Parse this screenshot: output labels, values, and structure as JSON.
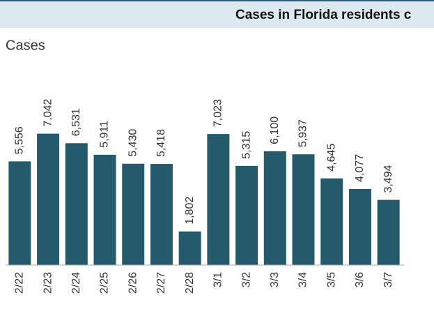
{
  "chart_data": {
    "type": "bar",
    "title": "Cases in Florida residents c",
    "y_label": "Cases",
    "categories": [
      "2/22",
      "2/23",
      "2/24",
      "2/25",
      "2/26",
      "2/27",
      "2/28",
      "3/1",
      "3/2",
      "3/3",
      "3/4",
      "3/5",
      "3/6",
      "3/7"
    ],
    "values": [
      5556,
      7042,
      6531,
      5911,
      5430,
      5418,
      1802,
      7023,
      5315,
      6100,
      5937,
      4645,
      4077,
      3494
    ],
    "value_labels": [
      "5,556",
      "7,042",
      "6,531",
      "5,911",
      "5,430",
      "5,418",
      "1,802",
      "7,023",
      "5,315",
      "6,100",
      "5,937",
      "4,645",
      "4,077",
      "3,494"
    ],
    "color": "#245a6b",
    "ylim": [
      0,
      8000
    ]
  }
}
